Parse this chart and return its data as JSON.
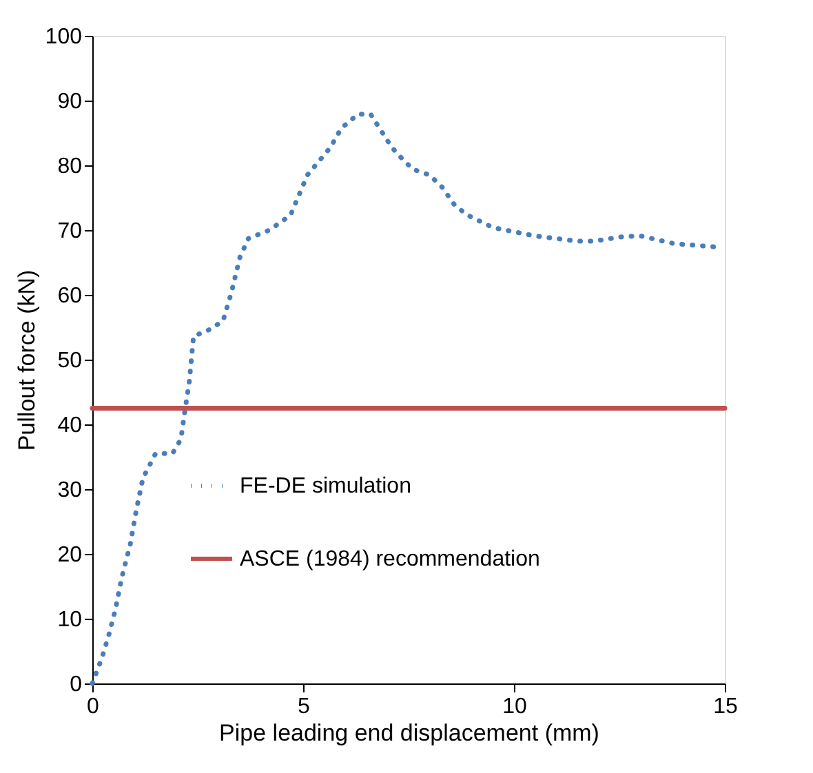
{
  "chart_data": {
    "type": "line",
    "xlabel": "Pipe leading end displacement (mm)",
    "ylabel": "Pullout force (kN)",
    "xlim": [
      0,
      15
    ],
    "xticks": [
      0,
      5,
      10,
      15
    ],
    "ylim": [
      0,
      100
    ],
    "yticks": [
      0,
      10,
      20,
      30,
      40,
      50,
      60,
      70,
      80,
      90,
      100
    ],
    "grid": false,
    "legend": "left",
    "series": [
      {
        "name": "FE-DE simulation",
        "color": "#4a7ebb",
        "line_style": "dotted",
        "x": [
          0,
          0.23,
          0.4,
          0.55,
          0.7,
          0.9,
          1.05,
          1.2,
          1.5,
          1.9,
          2.1,
          2.2,
          2.3,
          2.4,
          2.8,
          3.1,
          3.3,
          3.5,
          3.7,
          4.2,
          4.7,
          5.1,
          5.65,
          5.9,
          6.3,
          6.6,
          7.0,
          7.2,
          7.6,
          8.0,
          8.3,
          8.6,
          8.9,
          9.5,
          10.5,
          11.5,
          11.9,
          12.6,
          13.0,
          13.8,
          14.8
        ],
        "values": [
          0,
          4,
          7.7,
          11.5,
          16.4,
          21.5,
          27,
          31.7,
          35.5,
          35.5,
          37.7,
          42.3,
          46.6,
          53.6,
          54.7,
          56,
          60.4,
          65.8,
          68.7,
          70,
          72.3,
          78.5,
          82.8,
          85.7,
          87.9,
          87.9,
          83.8,
          82,
          79.4,
          78.5,
          76.6,
          73.8,
          72.3,
          70.4,
          69.1,
          68.3,
          68.3,
          69,
          69.1,
          67.9,
          67.4
        ]
      },
      {
        "name": "ASCE (1984) recommendation",
        "color": "#c0504d",
        "line_style": "solid",
        "x": [
          0,
          15
        ],
        "values": [
          42.5,
          42.5
        ]
      }
    ]
  }
}
